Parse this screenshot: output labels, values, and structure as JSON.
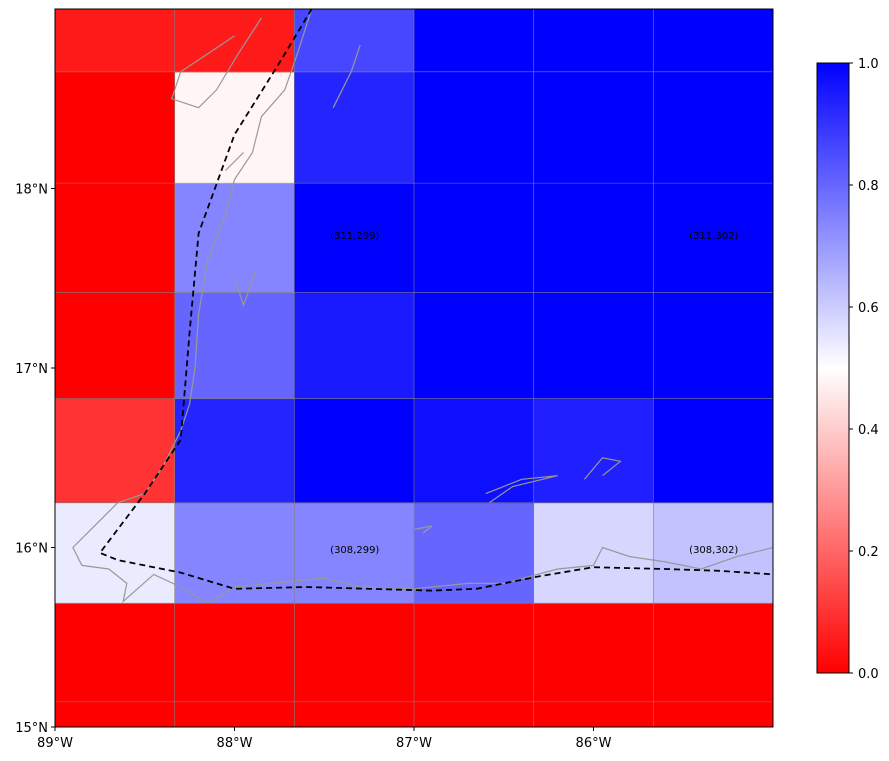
{
  "map": {
    "lon_range": [
      -89.0,
      -85.0
    ],
    "lat_range": [
      15.0,
      19.0
    ],
    "x_ticks": [
      {
        "value": -89,
        "label": "89°W"
      },
      {
        "value": -88,
        "label": "88°W"
      },
      {
        "value": -87,
        "label": "87°W"
      },
      {
        "value": -86,
        "label": "86°W"
      }
    ],
    "y_ticks": [
      {
        "value": 15,
        "label": "15°N"
      },
      {
        "value": 16,
        "label": "16°N"
      },
      {
        "value": 17,
        "label": "17°N"
      },
      {
        "value": 18,
        "label": "18°N"
      }
    ],
    "grid_lon_edges": [
      -89.0,
      -88.333,
      -87.667,
      -87.0,
      -86.333,
      -85.667,
      -85.0
    ],
    "grid_lat_edges": [
      15.0,
      15.14,
      15.69,
      16.25,
      16.83,
      17.42,
      18.03,
      18.65,
      19.0
    ],
    "cells": [
      [
        0.0,
        0.0,
        0.0,
        0.0,
        0.0,
        0.0
      ],
      [
        0.0,
        0.0,
        0.0,
        0.0,
        0.0,
        0.0
      ],
      [
        0.54,
        0.74,
        0.74,
        0.8,
        0.58,
        0.62
      ],
      [
        0.1,
        0.93,
        1.0,
        0.97,
        0.94,
        1.0
      ],
      [
        0.0,
        0.8,
        0.95,
        1.0,
        1.0,
        1.0
      ],
      [
        0.0,
        0.74,
        1.0,
        1.0,
        1.0,
        1.0
      ],
      [
        0.0,
        0.48,
        0.93,
        1.0,
        1.0,
        1.0
      ],
      [
        0.05,
        0.05,
        0.86,
        1.0,
        1.0,
        1.0
      ]
    ],
    "cell_labels": [
      {
        "text": "(311,299)",
        "lon": -87.33,
        "lat": 17.72
      },
      {
        "text": "(311,302)",
        "lon": -85.33,
        "lat": 17.72
      },
      {
        "text": "(308,299)",
        "lon": -87.33,
        "lat": 15.97
      },
      {
        "text": "(308,302)",
        "lon": -85.33,
        "lat": 15.97
      }
    ]
  },
  "colorbar": {
    "colormap": [
      "#ff0000",
      "#ffffff",
      "#0000ff"
    ],
    "range": [
      0.0,
      1.0
    ],
    "ticks": [
      {
        "value": 0.0,
        "label": "0.0"
      },
      {
        "value": 0.2,
        "label": "0.2"
      },
      {
        "value": 0.4,
        "label": "0.4"
      },
      {
        "value": 0.6,
        "label": "0.6"
      },
      {
        "value": 0.8,
        "label": "0.8"
      },
      {
        "value": 1.0,
        "label": "1.0"
      }
    ]
  },
  "colors": {
    "gridline": "#808080",
    "coastline": "#999999",
    "boundary": "#000000"
  },
  "boundary_line": [
    [
      -87.57,
      19.0
    ],
    [
      -87.75,
      18.7
    ],
    [
      -88.0,
      18.3
    ],
    [
      -88.2,
      17.75
    ],
    [
      -88.25,
      17.2
    ],
    [
      -88.3,
      16.6
    ],
    [
      -88.5,
      16.3
    ],
    [
      -88.75,
      15.97
    ],
    [
      -88.65,
      15.93
    ],
    [
      -88.3,
      15.86
    ],
    [
      -88.0,
      15.77
    ],
    [
      -87.6,
      15.78
    ],
    [
      -86.9,
      15.76
    ],
    [
      -86.65,
      15.77
    ],
    [
      -86.3,
      15.84
    ],
    [
      -86.0,
      15.89
    ],
    [
      -85.6,
      15.88
    ],
    [
      -85.3,
      15.87
    ],
    [
      -85.0,
      15.85
    ]
  ]
}
